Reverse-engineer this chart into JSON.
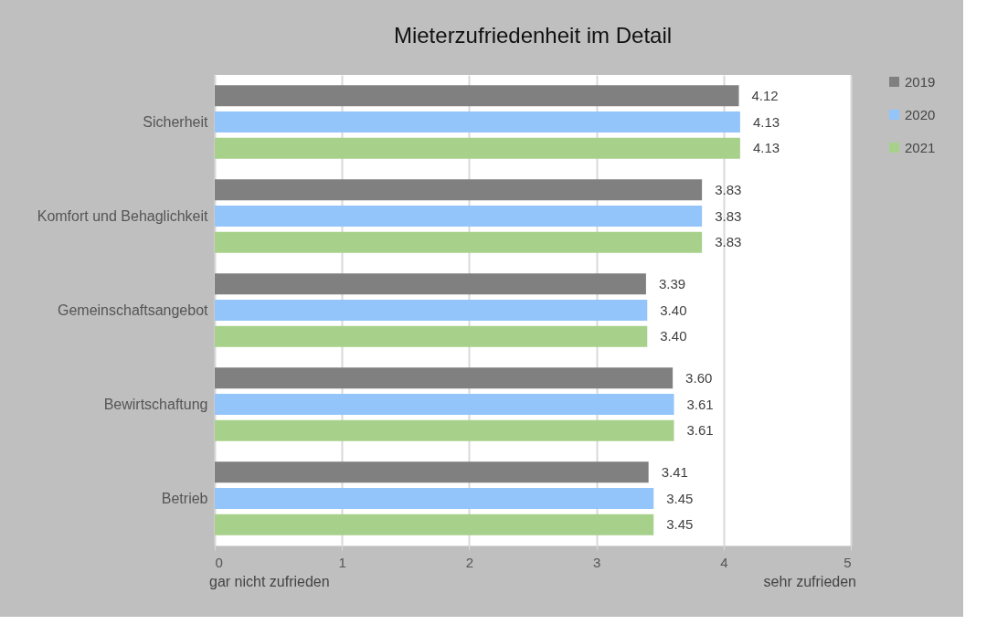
{
  "chart_data": {
    "type": "bar",
    "orientation": "horizontal",
    "title": "Mieterzufriedenheit im Detail",
    "categories": [
      "Sicherheit",
      "Komfort und Behaglichkeit",
      "Gemeinschaftsangebot",
      "Bewirtschaftung",
      "Betrieb"
    ],
    "series": [
      {
        "name": "2019",
        "color": "#808080",
        "values": [
          4.12,
          3.83,
          3.39,
          3.6,
          3.41
        ],
        "value_labels": [
          "4.12",
          "3.83",
          "3.39",
          "3.60",
          "3.41"
        ]
      },
      {
        "name": "2020",
        "color": "#93c5fb",
        "values": [
          4.13,
          3.83,
          3.4,
          3.61,
          3.45
        ],
        "value_labels": [
          "4.13",
          "3.83",
          "3.40",
          "3.61",
          "3.45"
        ]
      },
      {
        "name": "2021",
        "color": "#a7d18b",
        "values": [
          4.13,
          3.83,
          3.4,
          3.61,
          3.45
        ],
        "value_labels": [
          "4.13",
          "3.83",
          "3.40",
          "3.61",
          "3.45"
        ]
      }
    ],
    "xlim": [
      0,
      5
    ],
    "xticks": [
      0,
      1,
      2,
      3,
      4,
      5
    ],
    "grid": "x",
    "legend": "right",
    "annotations": [
      "gar nicht zufrieden",
      "sehr zufrieden"
    ]
  }
}
